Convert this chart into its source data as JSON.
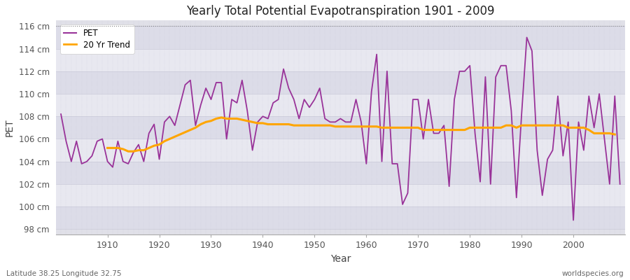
{
  "title": "Yearly Total Potential Evapotranspiration 1901 - 2009",
  "xlabel": "Year",
  "ylabel": "PET",
  "subtitle_left": "Latitude 38.25 Longitude 32.75",
  "subtitle_right": "worldspecies.org",
  "pet_color": "#993399",
  "trend_color": "#ffa500",
  "fig_bg_color": "#ffffff",
  "plot_bg_color": "#e0e0e8",
  "ylim": [
    97.5,
    116.5
  ],
  "yticks": [
    98,
    100,
    102,
    104,
    106,
    108,
    110,
    112,
    114,
    116
  ],
  "ytick_labels": [
    "98 cm",
    "100 cm",
    "102 cm",
    "104 cm",
    "106 cm",
    "108 cm",
    "110 cm",
    "112 cm",
    "114 cm",
    "116 cm"
  ],
  "years": [
    1901,
    1902,
    1903,
    1904,
    1905,
    1906,
    1907,
    1908,
    1909,
    1910,
    1911,
    1912,
    1913,
    1914,
    1915,
    1916,
    1917,
    1918,
    1919,
    1920,
    1921,
    1922,
    1923,
    1924,
    1925,
    1926,
    1927,
    1928,
    1929,
    1930,
    1931,
    1932,
    1933,
    1934,
    1935,
    1936,
    1937,
    1938,
    1939,
    1940,
    1941,
    1942,
    1943,
    1944,
    1945,
    1946,
    1947,
    1948,
    1949,
    1950,
    1951,
    1952,
    1953,
    1954,
    1955,
    1956,
    1957,
    1958,
    1959,
    1960,
    1961,
    1962,
    1963,
    1964,
    1965,
    1966,
    1967,
    1968,
    1969,
    1970,
    1971,
    1972,
    1973,
    1974,
    1975,
    1976,
    1977,
    1978,
    1979,
    1980,
    1981,
    1982,
    1983,
    1984,
    1985,
    1986,
    1987,
    1988,
    1989,
    1990,
    1991,
    1992,
    1993,
    1994,
    1995,
    1996,
    1997,
    1998,
    1999,
    2000,
    2001,
    2002,
    2003,
    2004,
    2005,
    2006,
    2007,
    2008,
    2009
  ],
  "pet": [
    108.2,
    105.8,
    104.0,
    105.8,
    103.8,
    104.0,
    104.5,
    105.8,
    106.0,
    104.0,
    103.5,
    105.8,
    104.0,
    103.8,
    104.8,
    105.5,
    104.0,
    106.5,
    107.3,
    104.2,
    107.5,
    108.0,
    107.2,
    109.0,
    110.8,
    111.2,
    107.2,
    109.0,
    110.5,
    109.5,
    111.0,
    111.0,
    106.0,
    109.5,
    109.2,
    111.2,
    108.5,
    105.0,
    107.5,
    108.0,
    107.8,
    109.2,
    109.5,
    112.2,
    110.5,
    109.5,
    107.8,
    109.5,
    108.8,
    109.5,
    110.5,
    107.8,
    107.5,
    107.5,
    107.8,
    107.5,
    107.5,
    109.5,
    107.5,
    103.8,
    110.2,
    113.5,
    104.0,
    112.0,
    103.8,
    103.8,
    100.2,
    101.2,
    109.5,
    109.5,
    106.0,
    109.5,
    106.5,
    106.5,
    107.2,
    101.8,
    109.5,
    112.0,
    112.0,
    112.5,
    106.5,
    102.2,
    111.5,
    102.0,
    111.5,
    112.5,
    112.5,
    108.5,
    100.8,
    108.2,
    115.0,
    113.8,
    105.0,
    101.0,
    104.2,
    105.0,
    109.8,
    104.5,
    107.5,
    98.8,
    107.5,
    105.0,
    109.8,
    107.0,
    110.0,
    106.0,
    102.0,
    109.8,
    102.0
  ],
  "trend": [
    null,
    null,
    null,
    null,
    null,
    null,
    null,
    null,
    null,
    105.2,
    105.2,
    105.2,
    105.1,
    104.9,
    104.9,
    105.0,
    105.0,
    105.2,
    105.4,
    105.5,
    105.8,
    106.0,
    106.2,
    106.4,
    106.6,
    106.8,
    107.0,
    107.3,
    107.5,
    107.6,
    107.8,
    107.9,
    107.8,
    107.8,
    107.8,
    107.7,
    107.6,
    107.5,
    107.4,
    107.4,
    107.3,
    107.3,
    107.3,
    107.3,
    107.3,
    107.2,
    107.2,
    107.2,
    107.2,
    107.2,
    107.2,
    107.2,
    107.2,
    107.1,
    107.1,
    107.1,
    107.1,
    107.1,
    107.1,
    107.1,
    107.1,
    107.1,
    107.0,
    107.0,
    107.0,
    107.0,
    107.0,
    107.0,
    107.0,
    107.0,
    106.8,
    106.8,
    106.8,
    106.8,
    106.8,
    106.8,
    106.8,
    106.8,
    106.8,
    107.0,
    107.0,
    107.0,
    107.0,
    107.0,
    107.0,
    107.0,
    107.2,
    107.2,
    107.0,
    107.2,
    107.2,
    107.2,
    107.2,
    107.2,
    107.2,
    107.2,
    107.2,
    107.2,
    107.0,
    107.0,
    107.0,
    107.0,
    106.8,
    106.5,
    106.5,
    106.5,
    106.5,
    106.4
  ],
  "xticks": [
    1910,
    1920,
    1930,
    1940,
    1950,
    1960,
    1970,
    1980,
    1990,
    2000
  ],
  "xlim": [
    1900,
    2010
  ],
  "legend_labels": [
    "PET",
    "20 Yr Trend"
  ],
  "dotted_line_y": 116,
  "band_colors": [
    "#dcdce8",
    "#e8e8f0"
  ],
  "vgrid_color": "#c8c8d8",
  "hgrid_color": "#c8c8d8"
}
